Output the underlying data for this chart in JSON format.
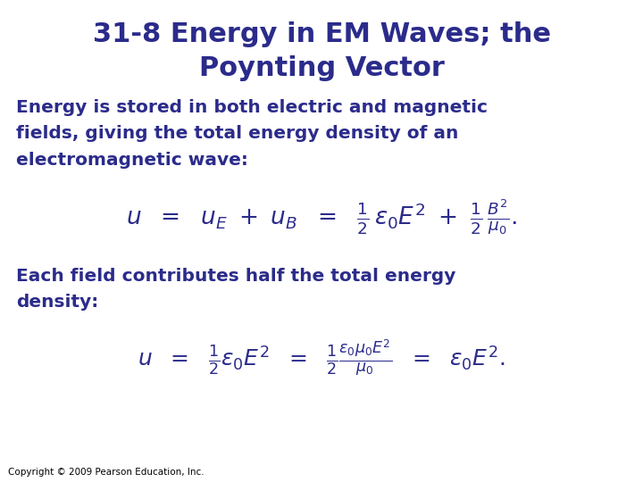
{
  "title_line1": "31-8 Energy in EM Waves; the",
  "title_line2": "Poynting Vector",
  "title_color": "#2B2B8B",
  "title_fontsize": 22,
  "bg_color": "#FFFFFF",
  "body_color": "#2B2B8B",
  "body_fontsize": 14.5,
  "eq1_fontsize": 14,
  "eq2_fontsize": 13,
  "para1_line1": "Energy is stored in both electric and magnetic",
  "para1_line2": "fields, giving the total energy density of an",
  "para1_line3": "electromagnetic wave:",
  "para2_line1": "Each field contributes half the total energy",
  "para2_line2": "density:",
  "copyright": "Copyright © 2009 Pearson Education, Inc.",
  "copyright_fontsize": 7.5
}
